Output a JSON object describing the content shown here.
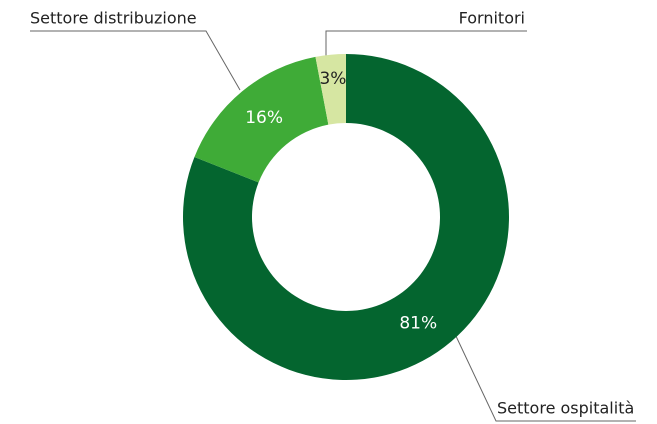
{
  "chart_data": {
    "type": "donut",
    "categories": [
      "Settore ospitalità",
      "Settore distribuzione",
      "Fornitori"
    ],
    "values": [
      81,
      16,
      3
    ],
    "value_labels": [
      "81%",
      "16%",
      "3%"
    ],
    "colors": [
      "#04652f",
      "#3fab37",
      "#d6e6a2"
    ],
    "label_colors": [
      "#ffffff",
      "#ffffff",
      "#222222"
    ]
  }
}
